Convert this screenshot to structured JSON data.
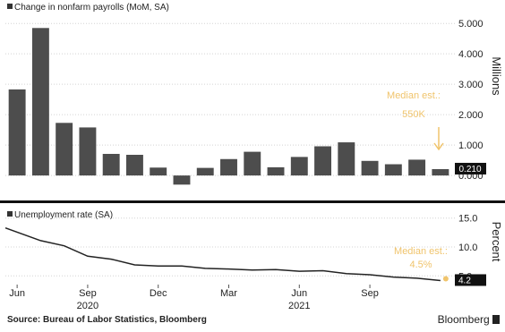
{
  "chart_data": [
    {
      "type": "bar",
      "legend": "Change in nonfarm payrolls (MoM, SA)",
      "ylabel": "Millions",
      "yticks": [
        "5.000",
        "4.000",
        "3.000",
        "2.000",
        "1.000",
        "0.000"
      ],
      "ylim": [
        -0.35,
        5.3
      ],
      "values": [
        2.83,
        4.85,
        1.73,
        1.58,
        0.71,
        0.68,
        0.26,
        -0.3,
        0.25,
        0.54,
        0.78,
        0.27,
        0.61,
        0.96,
        1.09,
        0.48,
        0.37,
        0.52,
        0.21
      ],
      "last_value_label": "0.210",
      "annotation": [
        "Median est.:",
        "550K"
      ],
      "colors": {
        "bar": "#4d4d4d",
        "annotation": "#f0c46c",
        "value_box": "#111111"
      }
    },
    {
      "type": "line",
      "legend": "Unemployment rate (SA)",
      "ylabel": "Percent",
      "yticks": [
        "15.0",
        "10.0",
        "5.0"
      ],
      "ylim": [
        3.5,
        16.5
      ],
      "values": [
        13.3,
        11.1,
        10.2,
        8.4,
        7.9,
        6.9,
        6.7,
        6.7,
        6.3,
        6.2,
        6.0,
        6.1,
        5.8,
        5.9,
        5.4,
        5.2,
        4.8,
        4.6,
        4.2
      ],
      "last_value_label": "4.2",
      "annotation": [
        "Median est.:",
        "4.5%"
      ],
      "colors": {
        "line": "#222222",
        "annotation": "#f0c46c",
        "value_box": "#111111"
      }
    }
  ],
  "x_axis": {
    "month_labels": [
      {
        "index": 0,
        "label": "Jun"
      },
      {
        "index": 3,
        "label": "Sep"
      },
      {
        "index": 6,
        "label": "Dec"
      },
      {
        "index": 9,
        "label": "Mar"
      },
      {
        "index": 12,
        "label": "Jun"
      },
      {
        "index": 15,
        "label": "Sep"
      }
    ],
    "year_labels": [
      {
        "index": 3,
        "label": "2020"
      },
      {
        "index": 12,
        "label": "2021"
      }
    ]
  },
  "footer": {
    "source": "Source: Bureau of Labor Statistics, Bloomberg",
    "brand": "Bloomberg"
  }
}
